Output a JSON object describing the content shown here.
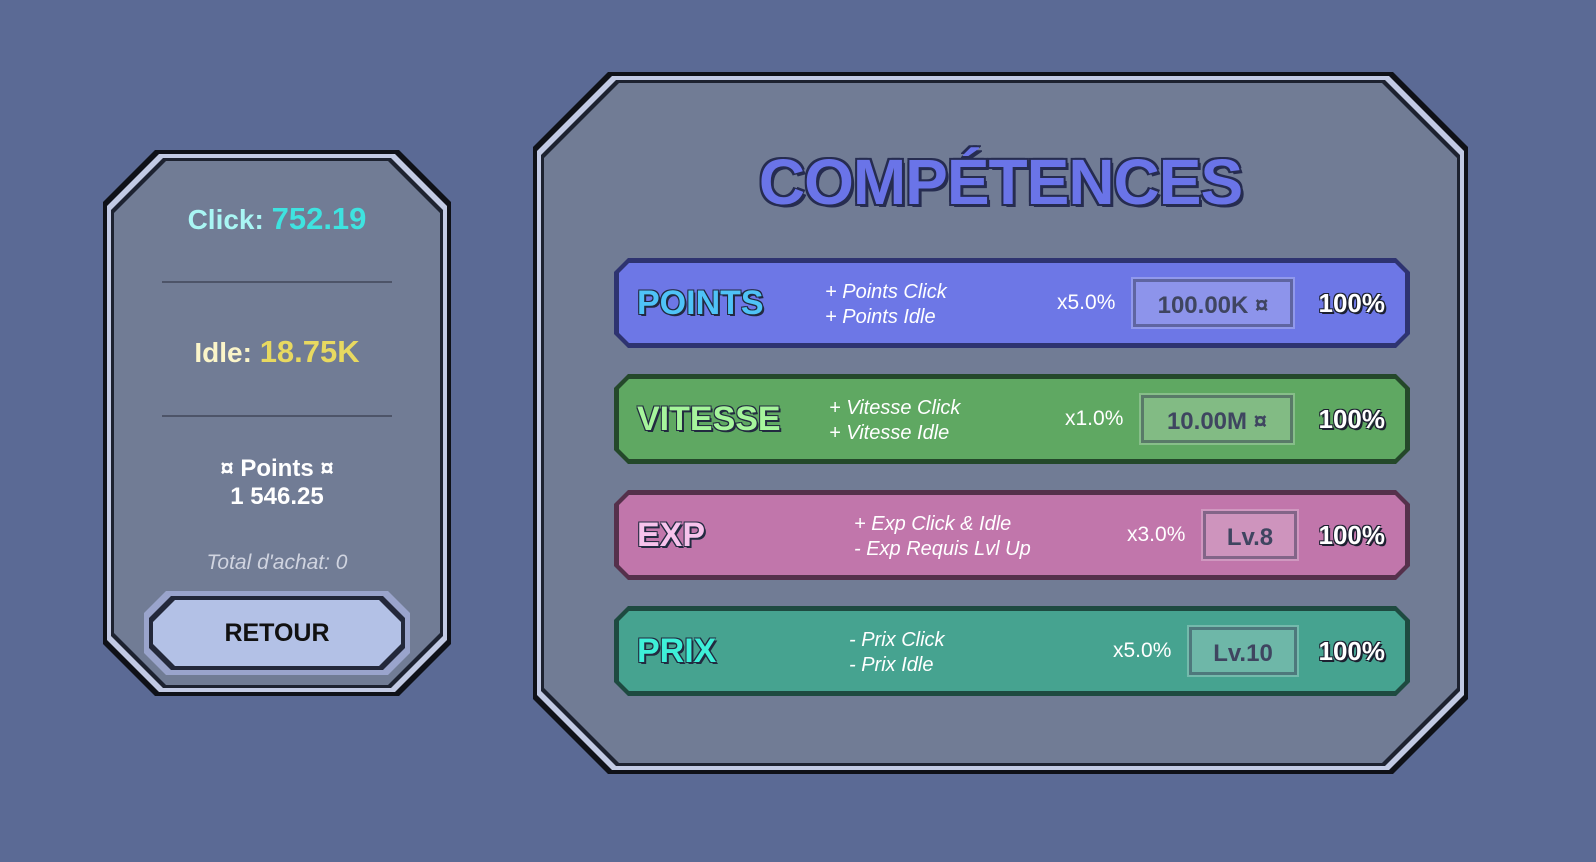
{
  "stats": {
    "click_label": "Click:",
    "click_value": "752.19",
    "idle_label": "Idle:",
    "idle_value": "18.75K",
    "points_label": "¤ Points ¤",
    "points_value": "1 546.25",
    "total_label": "Total d'achat: 0",
    "back_button": "RETOUR"
  },
  "title": "COMPÉTENCES",
  "skills": [
    {
      "name": "POINTS",
      "line1": "+ Points Click",
      "line2": "+ Points Idle",
      "mult": "x5.0%",
      "cost": "100.00K ¤",
      "pct": "100%",
      "color": "#6d77e6",
      "border": "#2e3370",
      "name_color": "#4fc3f7"
    },
    {
      "name": "VITESSE",
      "line1": "+ Vitesse Click",
      "line2": "+ Vitesse Idle",
      "mult": "x1.0%",
      "cost": "10.00M ¤",
      "pct": "100%",
      "color": "#5fa862",
      "border": "#24482a",
      "name_color": "#a6f59c"
    },
    {
      "name": "EXP",
      "line1": "+ Exp Click & Idle",
      "line2": "- Exp Requis Lvl Up",
      "mult": "x3.0%",
      "cost": "Lv.8",
      "pct": "100%",
      "color": "#c176ab",
      "border": "#55304b",
      "name_color": "#f7c3ec"
    },
    {
      "name": "PRIX",
      "line1": "- Prix Click",
      "line2": "- Prix Idle",
      "mult": "x5.0%",
      "cost": "Lv.10",
      "pct": "100%",
      "color": "#46a390",
      "border": "#1e4a40",
      "name_color": "#3ef0d8"
    }
  ]
}
